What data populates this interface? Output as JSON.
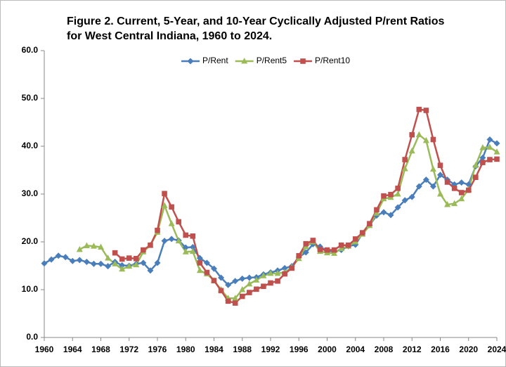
{
  "chart_data": {
    "type": "line",
    "title": [
      "Figure 2.  Current, 5-Year, and 10-Year Cyclically Adjusted P/rent Ratios",
      "for West Central Indiana, 1960 to 2024."
    ],
    "x": [
      1960,
      1961,
      1962,
      1963,
      1964,
      1965,
      1966,
      1967,
      1968,
      1969,
      1970,
      1971,
      1972,
      1973,
      1974,
      1975,
      1976,
      1977,
      1978,
      1979,
      1980,
      1981,
      1982,
      1983,
      1984,
      1985,
      1986,
      1987,
      1988,
      1989,
      1990,
      1991,
      1992,
      1993,
      1994,
      1995,
      1996,
      1997,
      1998,
      1999,
      2000,
      2001,
      2002,
      2003,
      2004,
      2005,
      2006,
      2007,
      2008,
      2009,
      2010,
      2011,
      2012,
      2013,
      2014,
      2015,
      2016,
      2017,
      2018,
      2019,
      2020,
      2021,
      2022,
      2023,
      2024
    ],
    "series": [
      {
        "name": "P/Rent",
        "color": "#4a7ebb",
        "marker": "diamond",
        "values": [
          15.5,
          16.3,
          17.1,
          16.8,
          16.0,
          16.2,
          15.8,
          15.4,
          15.4,
          14.9,
          15.8,
          15.1,
          15.0,
          15.4,
          15.6,
          14.0,
          15.6,
          20.2,
          20.6,
          20.3,
          18.8,
          18.9,
          16.6,
          15.6,
          14.4,
          12.5,
          11.0,
          11.8,
          12.3,
          12.5,
          12.6,
          13.2,
          13.6,
          14.0,
          14.5,
          14.9,
          16.8,
          17.8,
          19.5,
          19.0,
          18.1,
          18.0,
          18.3,
          19.1,
          19.4,
          21.8,
          23.5,
          25.5,
          26.2,
          25.6,
          27.2,
          28.7,
          29.4,
          31.6,
          33.0,
          31.6,
          34.0,
          33.0,
          32.0,
          32.4,
          32.0,
          35.8,
          37.6,
          41.4,
          40.6
        ]
      },
      {
        "name": "P/Rent5",
        "color": "#9bbb59",
        "marker": "triangle",
        "values": [
          null,
          null,
          null,
          null,
          null,
          18.4,
          19.2,
          19.1,
          18.9,
          16.6,
          15.4,
          14.3,
          14.9,
          15.2,
          17.9,
          19.3,
          22.0,
          27.6,
          23.8,
          20.2,
          17.9,
          18.0,
          14.0,
          13.3,
          11.9,
          10.0,
          8.2,
          8.2,
          10.0,
          11.2,
          12.0,
          12.9,
          13.4,
          13.4,
          13.6,
          14.7,
          16.5,
          19.0,
          20.0,
          18.0,
          17.7,
          17.6,
          18.6,
          19.1,
          20.0,
          21.6,
          23.4,
          26.0,
          29.0,
          29.3,
          30.0,
          35.3,
          39.0,
          42.4,
          41.2,
          35.2,
          30.0,
          27.8,
          28.0,
          29.0,
          31.0,
          36.0,
          39.7,
          39.8,
          38.8
        ]
      },
      {
        "name": "P/Rent10",
        "color": "#c0504d",
        "marker": "square",
        "values": [
          null,
          null,
          null,
          null,
          null,
          null,
          null,
          null,
          null,
          null,
          17.7,
          16.4,
          16.6,
          16.5,
          18.3,
          19.3,
          22.4,
          30.1,
          27.3,
          24.2,
          21.4,
          21.2,
          15.6,
          13.6,
          11.9,
          9.8,
          7.6,
          7.2,
          8.6,
          9.4,
          10.1,
          10.7,
          11.4,
          11.8,
          13.3,
          14.5,
          17.1,
          19.6,
          20.3,
          18.4,
          18.3,
          18.3,
          19.3,
          19.3,
          20.6,
          21.9,
          23.8,
          26.7,
          29.6,
          29.9,
          31.2,
          37.2,
          42.4,
          47.7,
          47.5,
          41.4,
          36.0,
          32.5,
          31.2,
          30.3,
          30.8,
          33.5,
          36.6,
          37.2,
          37.3
        ]
      }
    ],
    "xlim": [
      1960,
      2024
    ],
    "xticks": [
      1960,
      1964,
      1968,
      1972,
      1976,
      1980,
      1984,
      1988,
      1992,
      1996,
      2000,
      2004,
      2008,
      2012,
      2016,
      2020,
      2024
    ],
    "ylim": [
      0,
      60
    ],
    "yticks": [
      {
        "value": 0,
        "label": "0.0"
      },
      {
        "value": 10,
        "label": "10.0"
      },
      {
        "value": 20,
        "label": "20.0"
      },
      {
        "value": 30,
        "label": "30.0"
      },
      {
        "value": 40,
        "label": "40.0"
      },
      {
        "value": 50,
        "label": "50.0"
      },
      {
        "value": 60,
        "label": "60.0"
      }
    ],
    "legend": "top"
  }
}
